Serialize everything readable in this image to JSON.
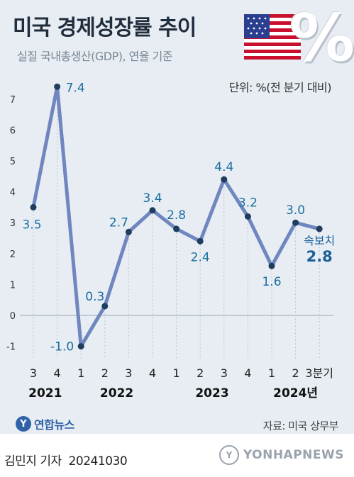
{
  "header": {
    "title": "미국 경제성장률 추이",
    "subtitle": "실질 국내총생산(GDP), 연율 기준",
    "unit": "단위: %(전 분기 대비)"
  },
  "decoration": {
    "flag_icon": "us-flag-icon",
    "percent_symbol": "%"
  },
  "chart_data": {
    "type": "line",
    "x": [
      "3",
      "4",
      "1",
      "2",
      "3",
      "4",
      "1",
      "2",
      "3",
      "4",
      "1",
      "2",
      "3분기"
    ],
    "year_labels": [
      {
        "label": "2021",
        "quarter_index": 0.5
      },
      {
        "label": "2022",
        "quarter_index": 3.5
      },
      {
        "label": "2023",
        "quarter_index": 7.5
      },
      {
        "label": "2024년",
        "quarter_index": 11
      }
    ],
    "values": [
      3.5,
      7.4,
      -1.0,
      0.3,
      2.7,
      3.4,
      2.8,
      2.4,
      4.4,
      3.2,
      1.6,
      3.0,
      2.8
    ],
    "data_labels": [
      "3.5",
      "7.4",
      "-1.0",
      "0.3",
      "2.7",
      "3.4",
      "2.8",
      "2.4",
      "4.4",
      "3.2",
      "1.6",
      "3.0",
      "2.8"
    ],
    "annotation": {
      "index": 12,
      "text": "속보치"
    },
    "y_ticks": [
      -1,
      0,
      1,
      2,
      3,
      4,
      5,
      6,
      7
    ],
    "ylim": [
      -1.2,
      7.6
    ],
    "grid": false,
    "zero_line": true,
    "colors": {
      "line": "#6f86bf",
      "marker": "#1f3d5c",
      "label": "#1a6fa0",
      "highlight": "#1a5f98"
    }
  },
  "footer": {
    "logo_text": "연합뉴스",
    "source": "자료: 미국 상무부",
    "reporter": "김민지 기자",
    "date": "20241030",
    "watermark": "YONHAPNEWS"
  }
}
